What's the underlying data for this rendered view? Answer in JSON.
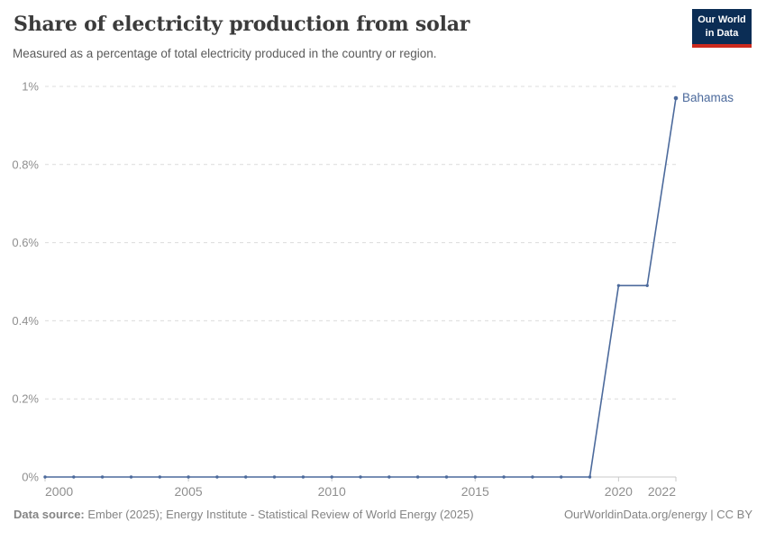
{
  "header": {
    "title": "Share of electricity production from solar",
    "subtitle": "Measured as a percentage of total electricity produced in the country or region.",
    "logo": {
      "line1": "Our World",
      "line2": "in Data",
      "bg_color": "#0b2d55",
      "accent_color": "#cc2a1d"
    }
  },
  "chart_data": {
    "type": "line",
    "title": "Share of electricity production from solar",
    "subtitle": "Measured as a percentage of total electricity produced in the country or region.",
    "xlabel": "",
    "ylabel": "",
    "x": [
      2000,
      2001,
      2002,
      2003,
      2004,
      2005,
      2006,
      2007,
      2008,
      2009,
      2010,
      2011,
      2012,
      2013,
      2014,
      2015,
      2016,
      2017,
      2018,
      2019,
      2020,
      2021,
      2022
    ],
    "series": [
      {
        "name": "Bahamas",
        "color": "#4C6A9C",
        "values": [
          0,
          0,
          0,
          0,
          0,
          0,
          0,
          0,
          0,
          0,
          0,
          0,
          0,
          0,
          0,
          0,
          0,
          0,
          0,
          0,
          0.49,
          0.49,
          0.97
        ]
      }
    ],
    "xlim": [
      2000,
      2022
    ],
    "ylim": [
      0,
      1
    ],
    "xticks": [
      {
        "v": 2000,
        "label": "2000"
      },
      {
        "v": 2005,
        "label": "2005"
      },
      {
        "v": 2010,
        "label": "2010"
      },
      {
        "v": 2015,
        "label": "2015"
      },
      {
        "v": 2020,
        "label": "2020"
      },
      {
        "v": 2022,
        "label": "2022"
      }
    ],
    "yticks": [
      {
        "v": 0,
        "label": "0%"
      },
      {
        "v": 0.2,
        "label": "0.2%"
      },
      {
        "v": 0.4,
        "label": "0.4%"
      },
      {
        "v": 0.6,
        "label": "0.6%"
      },
      {
        "v": 0.8,
        "label": "0.8%"
      },
      {
        "v": 1,
        "label": "1%"
      }
    ],
    "grid": "horizontal-dashed",
    "legend_position": "end-of-line-label",
    "end_label": "Bahamas"
  },
  "footer": {
    "source_label": "Data source:",
    "source_text": " Ember (2025); Energy Institute - Statistical Review of World Energy (2025)",
    "credit": "OurWorldinData.org/energy | CC BY"
  },
  "colors": {
    "line": "#4C6A9C",
    "grid": "#dcdcdc",
    "axis": "#c8c8c8",
    "tick_label": "#8f8f8f",
    "title": "#3b3b3b",
    "subtitle": "#5a5a5a",
    "footer": "#858585"
  }
}
